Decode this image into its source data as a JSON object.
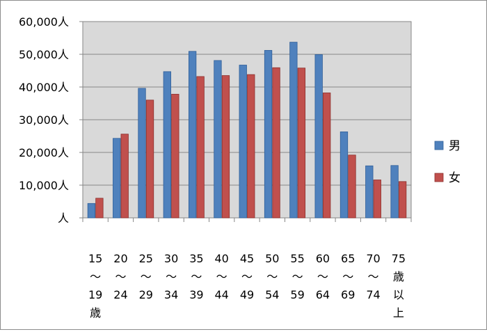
{
  "chart_data": {
    "type": "bar",
    "title": "",
    "xlabel": "",
    "ylabel": "",
    "ylim": [
      0,
      60000
    ],
    "y_ticks": [
      0,
      10000,
      20000,
      30000,
      40000,
      50000,
      60000
    ],
    "y_tick_labels": [
      "人",
      "10,000人",
      "20,000人",
      "30,000人",
      "40,000人",
      "50,000人",
      "60,000人"
    ],
    "categories": [
      [
        "15",
        "〜",
        "19",
        "歳"
      ],
      [
        "20",
        "〜",
        "24"
      ],
      [
        "25",
        "〜",
        "29"
      ],
      [
        "30",
        "〜",
        "34"
      ],
      [
        "35",
        "〜",
        "39"
      ],
      [
        "40",
        "〜",
        "44"
      ],
      [
        "45",
        "〜",
        "49"
      ],
      [
        "50",
        "〜",
        "54"
      ],
      [
        "55",
        "〜",
        "59"
      ],
      [
        "60",
        "〜",
        "64"
      ],
      [
        "65",
        "〜",
        "69"
      ],
      [
        "70",
        "〜",
        "74"
      ],
      [
        "75",
        "歳",
        "以",
        "上"
      ]
    ],
    "series": [
      {
        "name": "男",
        "color": "#4f81bd",
        "stroke": "#2f5f99",
        "values": [
          4400,
          24300,
          39600,
          44700,
          50900,
          48100,
          46700,
          51200,
          53700,
          49900,
          26300,
          15900,
          16000
        ]
      },
      {
        "name": "女",
        "color": "#c0504d",
        "stroke": "#8c2f2c",
        "values": [
          6000,
          25600,
          36000,
          37800,
          43200,
          43500,
          43800,
          45900,
          45800,
          38200,
          19200,
          11600,
          11100
        ]
      }
    ],
    "grid": true,
    "legend": "right",
    "plot_background": "#d9d9d9"
  }
}
